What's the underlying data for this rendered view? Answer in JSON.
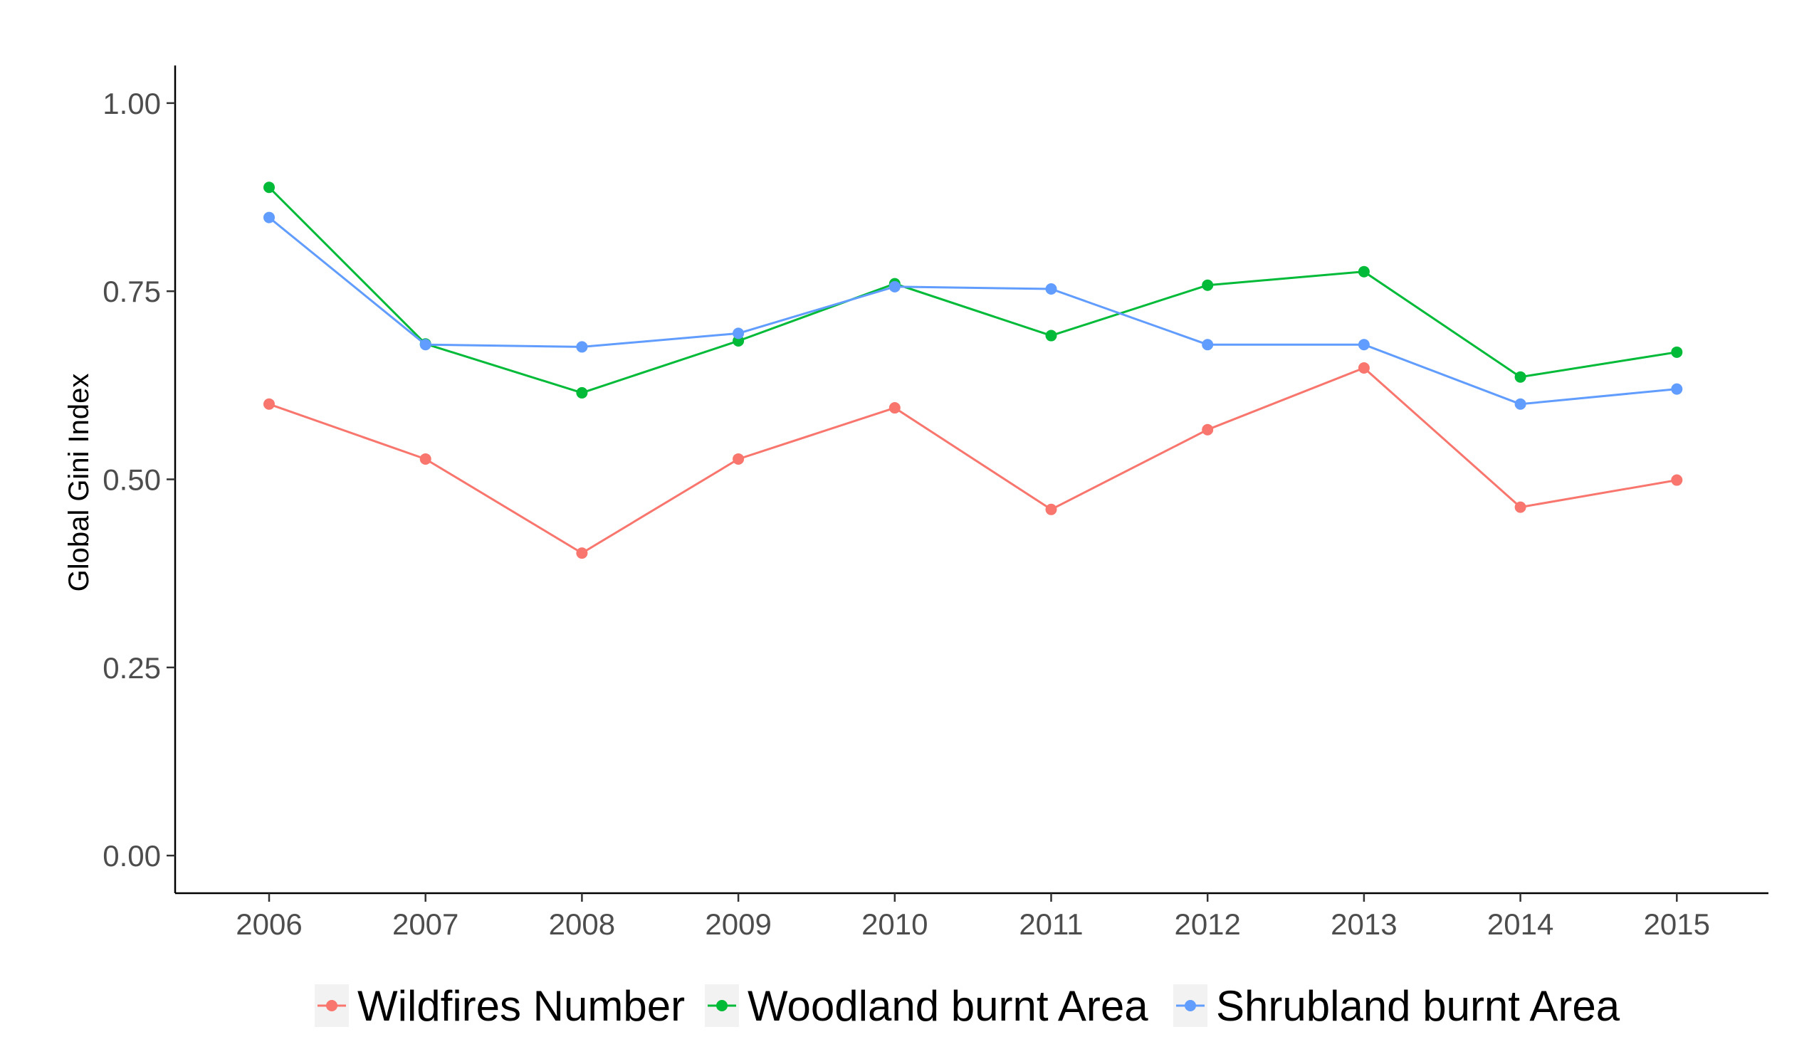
{
  "chart_data": {
    "type": "line",
    "title": "",
    "xlabel": "",
    "ylabel": "Global Gini Index",
    "x": [
      "2006",
      "2007",
      "2008",
      "2009",
      "2010",
      "2011",
      "2012",
      "2013",
      "2014",
      "2015"
    ],
    "ylim": [
      -0.05,
      1.05
    ],
    "yticks": [
      0.0,
      0.25,
      0.5,
      0.75,
      1.0
    ],
    "ytick_labels": [
      "0.00",
      "0.25",
      "0.50",
      "0.75",
      "1.00"
    ],
    "grid": false,
    "legend_position": "bottom",
    "series": [
      {
        "name": "Wildfires Number",
        "color": "#F8766D",
        "values": [
          0.6,
          0.527,
          0.402,
          0.527,
          0.595,
          0.46,
          0.566,
          0.648,
          0.463,
          0.499
        ]
      },
      {
        "name": "Woodland burnt Area",
        "color": "#00BA38",
        "values": [
          0.888,
          0.68,
          0.615,
          0.684,
          0.76,
          0.691,
          0.758,
          0.776,
          0.636,
          0.669
        ]
      },
      {
        "name": "Shrubland burnt Area",
        "color": "#619CFF",
        "values": [
          0.848,
          0.679,
          0.676,
          0.694,
          0.756,
          0.753,
          0.679,
          0.679,
          0.6,
          0.62
        ]
      }
    ]
  }
}
